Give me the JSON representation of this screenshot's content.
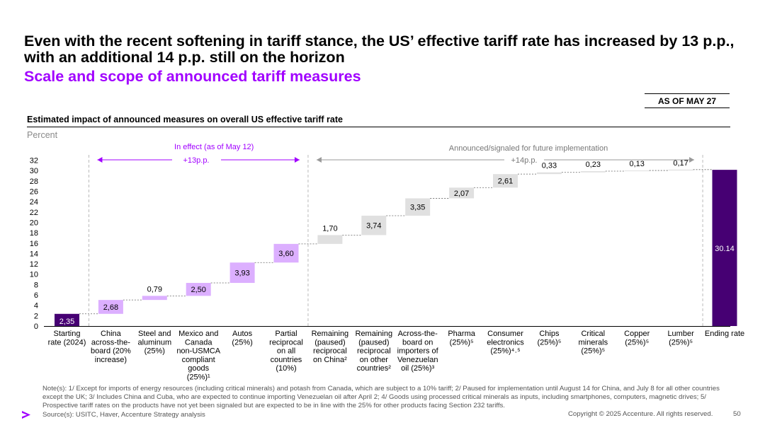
{
  "header": {
    "title": "Even with the recent softening in tariff stance, the US’ effective tariff rate has increased by 13 p.p., with an additional 14 p.p. still on the horizon",
    "subtitle": "Scale and scope of announced tariff measures",
    "as_of": "AS OF MAY 27"
  },
  "colors": {
    "dark": "#460073",
    "light": "#dcafff",
    "grey": "#e0e0e0",
    "accent": "#a100ff"
  },
  "chart_data": {
    "type": "waterfall",
    "title": "Estimated impact of announced measures on overall US effective tariff rate",
    "ylabel": "Percent",
    "ylim": [
      0,
      32
    ],
    "yticks": [
      0,
      2,
      4,
      6,
      8,
      10,
      12,
      14,
      16,
      18,
      20,
      22,
      24,
      26,
      28,
      30,
      32
    ],
    "categories": [
      [
        "Starting",
        "rate (2024)"
      ],
      [
        "China",
        "across-the-",
        "board (20%",
        "increase)"
      ],
      [
        "Steel and",
        "aluminum",
        "(25%)"
      ],
      [
        "Mexico and",
        "Canada",
        "non-USMCA",
        "compliant",
        "goods",
        "(25%)¹"
      ],
      [
        "Autos",
        "(25%)"
      ],
      [
        "Partial",
        "reciprocal",
        "on all",
        "countries",
        "(10%)"
      ],
      [
        "Remaining",
        "(paused)",
        "reciprocal",
        "on China²"
      ],
      [
        "Remaining",
        "(paused)",
        "reciprocal",
        "on other",
        "countries²"
      ],
      [
        "Across-the-",
        "board on",
        "importers of",
        "Venezuelan",
        "oil (25%)³"
      ],
      [
        "Pharma",
        "(25%)⁵"
      ],
      [
        "Consumer",
        "electronics",
        "(25%)⁴˒⁵"
      ],
      [
        "Chips",
        "(25%)⁵"
      ],
      [
        "Critical",
        "minerals",
        "(25%)⁵"
      ],
      [
        "Copper",
        "(25%)⁵"
      ],
      [
        "Lumber",
        "(25%)⁵"
      ],
      [
        "Ending rate"
      ]
    ],
    "values": [
      2.35,
      2.68,
      0.79,
      2.5,
      3.93,
      3.6,
      1.7,
      3.74,
      3.35,
      2.07,
      2.61,
      0.33,
      0.23,
      0.13,
      0.17,
      30.14
    ],
    "labels": [
      "2,35",
      "2,68",
      "0,79",
      "2,50",
      "3,93",
      "3,60",
      "1,70",
      "3,74",
      "3,35",
      "2,07",
      "2,61",
      "0,33",
      "0,23",
      "0,13",
      "0,17",
      "30.14"
    ],
    "kinds": [
      "total",
      "effect",
      "effect",
      "effect",
      "effect",
      "effect",
      "future",
      "future",
      "future",
      "future",
      "future",
      "future",
      "future",
      "future",
      "future",
      "total"
    ],
    "annotations": {
      "in_effect_label": "In effect (as of May 12)",
      "in_effect_delta": "+13p.p.",
      "future_label": "Announced/signaled for future implementation",
      "future_delta": "+14p.p."
    }
  },
  "footer": {
    "notes": "Note(s): 1/ Except for imports of energy resources (including critical minerals) and potash from Canada, which are subject to a 10% tariff; 2/ Paused for implementation until August 14 for China, and July 8 for all other countries except the UK; 3/ Includes China and Cuba, who are expected to continue importing Venezuelan oil after April 2; 4/ Goods using processed critical minerals as inputs, including smartphones, computers, magnetic drives; 5/ Prospective tariff rates on the products have not yet been signaled but are expected to be in line with the 25% for other products facing Section 232 tariffs.",
    "source": "Source(s): USITC, Haver, Accenture Strategy analysis",
    "copyright": "Copyright © 2025 Accenture. All rights reserved.",
    "page": "50"
  }
}
